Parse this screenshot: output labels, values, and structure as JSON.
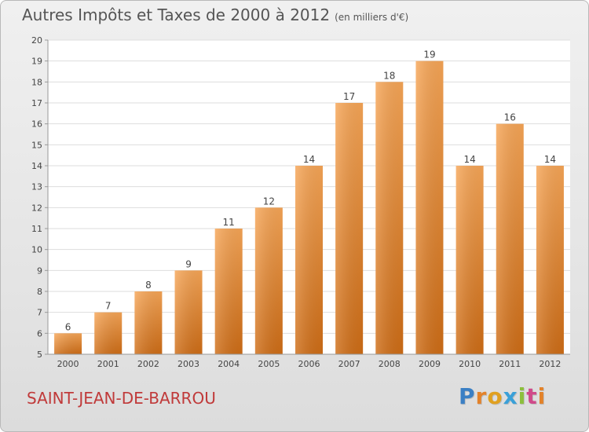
{
  "title": "Autres Impôts et Taxes de 2000 à 2012",
  "subtitle": "(en milliers d'€)",
  "town": "SAINT-JEAN-DE-BARROU",
  "logo": {
    "letters": [
      "P",
      "r",
      "o",
      "x",
      "i",
      "t",
      "i"
    ],
    "colors": [
      "#3a7fc4",
      "#e3822a",
      "#e0a020",
      "#3aa0d8",
      "#8cbf3c",
      "#d04a8a",
      "#e3822a"
    ]
  },
  "chart_data": {
    "type": "bar",
    "categories": [
      "2000",
      "2001",
      "2002",
      "2003",
      "2004",
      "2005",
      "2006",
      "2007",
      "2008",
      "2009",
      "2010",
      "2011",
      "2012"
    ],
    "values": [
      6,
      7,
      8,
      9,
      11,
      12,
      14,
      17,
      18,
      19,
      14,
      16,
      14
    ],
    "ylim": [
      5,
      20
    ],
    "yticks": [
      5,
      6,
      7,
      8,
      9,
      10,
      11,
      12,
      13,
      14,
      15,
      16,
      17,
      18,
      19,
      20
    ],
    "grid": true,
    "bar_color": "#f0953a",
    "xlabel": "",
    "ylabel": ""
  }
}
